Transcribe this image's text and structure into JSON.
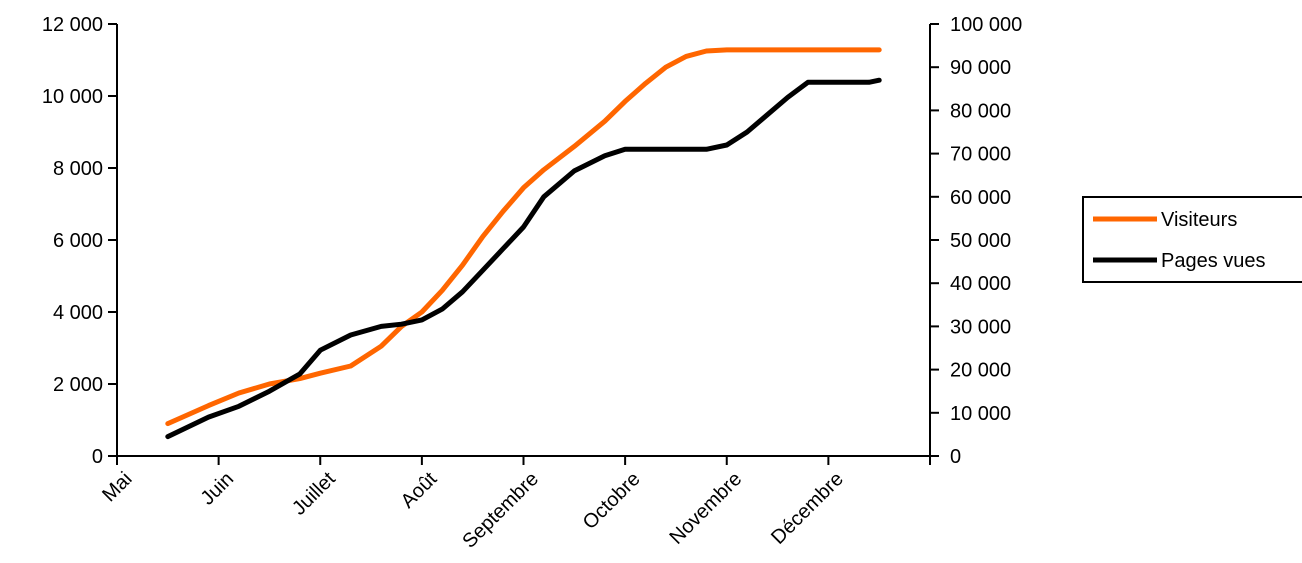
{
  "chart_data": {
    "type": "line",
    "categories": [
      "Mai",
      "Juin",
      "Juillet",
      "Août",
      "Septembre",
      "Octobre",
      "Novembre",
      "Décembre"
    ],
    "x": [
      0.5,
      0.9,
      1.2,
      1.5,
      1.8,
      2.0,
      2.3,
      2.6,
      2.8,
      3.0,
      3.2,
      3.4,
      3.6,
      3.8,
      4.0,
      4.2,
      4.5,
      4.8,
      5.0,
      5.2,
      5.4,
      5.6,
      5.8,
      6.0,
      6.2,
      6.4,
      6.6,
      6.8,
      7.0,
      7.2,
      7.4,
      7.5
    ],
    "series": [
      {
        "name": "Visiteurs",
        "axis": "left",
        "color": "#ff6600",
        "values": [
          900,
          1400,
          1750,
          2000,
          2150,
          2300,
          2500,
          3050,
          3600,
          4000,
          4600,
          5300,
          6100,
          6800,
          7450,
          7950,
          8600,
          9300,
          9850,
          10350,
          10800,
          11100,
          11250,
          11280,
          11280,
          11280,
          11280,
          11280,
          11280,
          11280,
          11280,
          11280
        ]
      },
      {
        "name": "Pages vues",
        "axis": "right",
        "color": "#000000",
        "values": [
          4500,
          9000,
          11500,
          15000,
          19000,
          24500,
          28000,
          30000,
          30500,
          31500,
          34000,
          38000,
          43000,
          48000,
          53000,
          60000,
          66000,
          69500,
          71000,
          71000,
          71000,
          71000,
          71000,
          72000,
          75000,
          79000,
          83000,
          86500,
          86500,
          86500,
          86500,
          87000
        ]
      }
    ],
    "y_left": {
      "range": [
        0,
        12000
      ],
      "ticks": [
        0,
        2000,
        4000,
        6000,
        8000,
        10000,
        12000
      ],
      "tick_labels": [
        "0",
        "2 000",
        "4 000",
        "6 000",
        "8 000",
        "10 000",
        "12 000"
      ]
    },
    "y_right": {
      "range": [
        0,
        100000
      ],
      "ticks": [
        0,
        10000,
        20000,
        30000,
        40000,
        50000,
        60000,
        70000,
        80000,
        90000,
        100000
      ],
      "tick_labels": [
        "0",
        "10 000",
        "20 000",
        "30 000",
        "40 000",
        "50 000",
        "60 000",
        "70 000",
        "80 000",
        "90 000",
        "100 000"
      ]
    },
    "grid": false,
    "legend": {
      "position": "right",
      "entries": [
        "Visiteurs",
        "Pages vues"
      ]
    },
    "title": "",
    "xlabel": "",
    "ylabel": ""
  }
}
